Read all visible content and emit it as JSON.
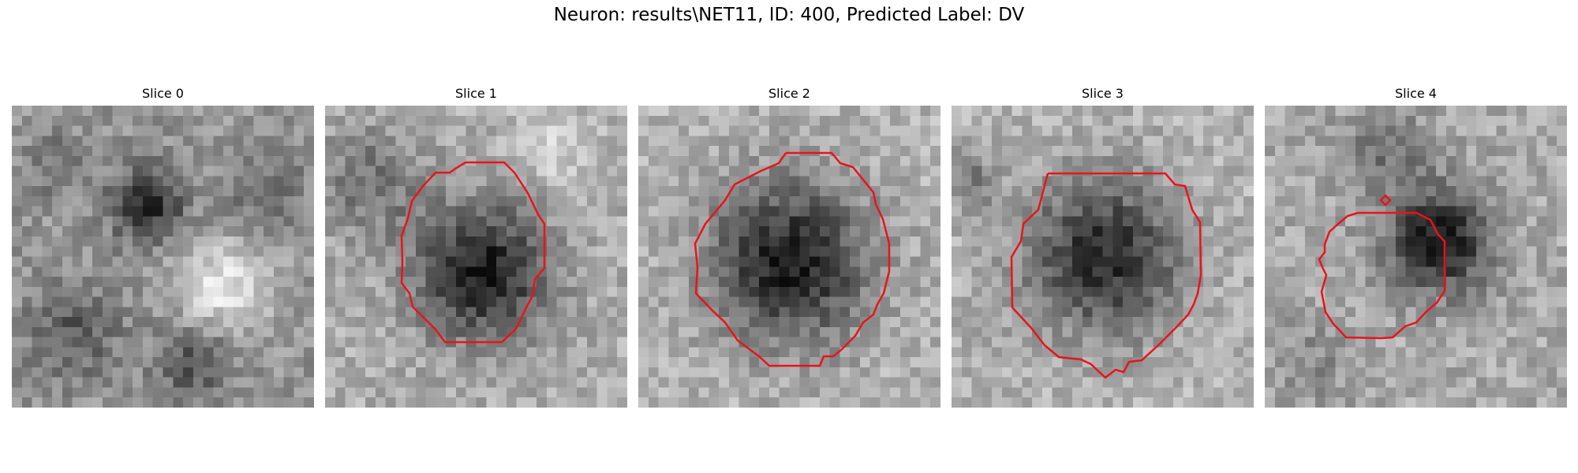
{
  "figure": {
    "suptitle": "Neuron: results\\NET11, ID: 400, Predicted Label: DV",
    "contour_color": "#e8141b"
  },
  "panels": [
    {
      "title": "Slice 0",
      "has_contour": false
    },
    {
      "title": "Slice 1",
      "has_contour": true
    },
    {
      "title": "Slice 2",
      "has_contour": true
    },
    {
      "title": "Slice 3",
      "has_contour": true
    },
    {
      "title": "Slice 4",
      "has_contour": true
    }
  ]
}
